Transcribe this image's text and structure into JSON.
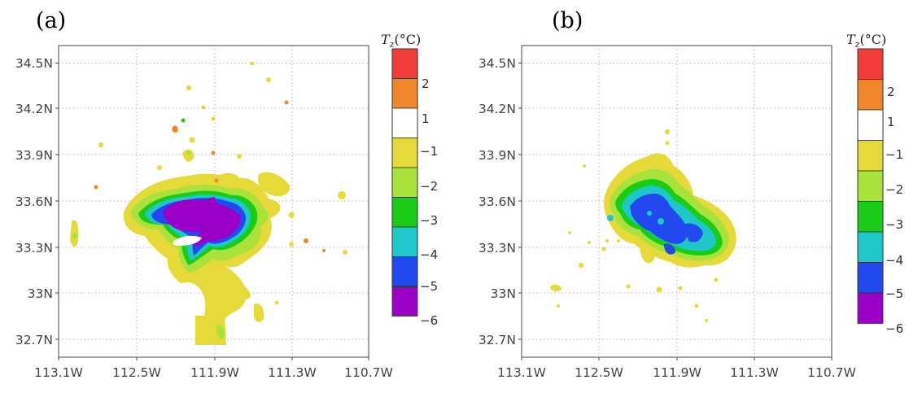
{
  "panels": [
    {
      "label": "(a)",
      "lat_ticks": [
        "34.5N",
        "34.2N",
        "33.9N",
        "33.6N",
        "33.3N",
        "33N",
        "32.7N"
      ],
      "lon_ticks": [
        "113.1W",
        "112.5W",
        "111.9W",
        "111.3W",
        "110.7W"
      ],
      "colorbar": {
        "title_symbol": "T",
        "title_subscript": "z",
        "title_unit": "(°C)",
        "labels": [
          "2",
          "1",
          "−1",
          "−2",
          "−3",
          "−4",
          "−5",
          "−6"
        ]
      }
    },
    {
      "label": "(b)",
      "lat_ticks": [
        "34.5N",
        "34.2N",
        "33.9N",
        "33.6N",
        "33.3N",
        "33N",
        "32.7N"
      ],
      "lon_ticks": [
        "113.1W",
        "112.5W",
        "111.9W",
        "111.3W",
        "110.7W"
      ],
      "colorbar": {
        "title_symbol": "T",
        "title_subscript": "z",
        "title_unit": "(°C)",
        "labels": [
          "2",
          "1",
          "−1",
          "−2",
          "−3",
          "−4",
          "−5",
          "−6"
        ]
      }
    }
  ],
  "colorbar_colors": [
    "#f23b3b",
    "#f0862a",
    "#ffffff",
    "#e6da3a",
    "#a8e23a",
    "#18cc18",
    "#1ec8c8",
    "#2248f0",
    "#9a00c8"
  ]
}
